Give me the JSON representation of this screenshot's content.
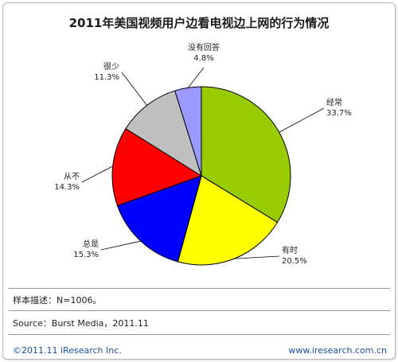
{
  "chart_data": {
    "type": "pie",
    "title": "2011年美国视频用户边看电视边上网的行为情况",
    "slices": [
      {
        "label": "经常",
        "value": 33.7,
        "display": "33.7%",
        "color": "#99cc00"
      },
      {
        "label": "有时",
        "value": 20.5,
        "display": "20.5%",
        "color": "#ffff00"
      },
      {
        "label": "总是",
        "value": 15.3,
        "display": "15.3%",
        "color": "#0000ff"
      },
      {
        "label": "从不",
        "value": 14.3,
        "display": "14.3%",
        "color": "#ff0000"
      },
      {
        "label": "很少",
        "value": 11.3,
        "display": "11.3%",
        "color": "#c0c0c0"
      },
      {
        "label": "没有回答",
        "value": 4.8,
        "display": "4.8%",
        "color": "#9999ff"
      }
    ]
  },
  "notes": {
    "sample": "样本描述：N=1006。",
    "source": "Source：Burst Media，2011.11"
  },
  "footer": {
    "copyright": "©2011.11 iResearch Inc.",
    "website": "www.iresearch.com.cn"
  }
}
